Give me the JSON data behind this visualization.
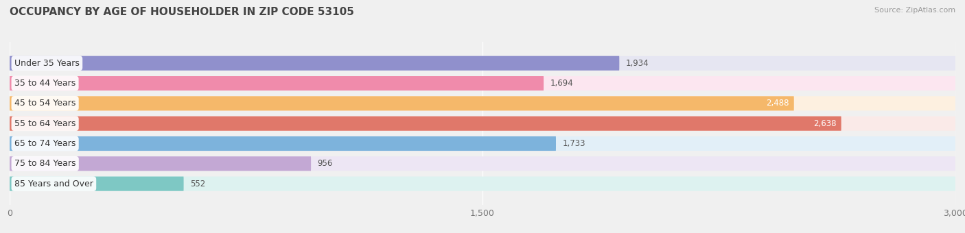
{
  "title": "OCCUPANCY BY AGE OF HOUSEHOLDER IN ZIP CODE 53105",
  "source": "Source: ZipAtlas.com",
  "categories": [
    "Under 35 Years",
    "35 to 44 Years",
    "45 to 54 Years",
    "55 to 64 Years",
    "65 to 74 Years",
    "75 to 84 Years",
    "85 Years and Over"
  ],
  "values": [
    1934,
    1694,
    2488,
    2638,
    1733,
    956,
    552
  ],
  "bar_colors": [
    "#9090cc",
    "#f08bab",
    "#f5b86a",
    "#e0786a",
    "#7db3dc",
    "#c3a8d4",
    "#7ec8c4"
  ],
  "bar_bg_colors": [
    "#e6e6f2",
    "#fce6f0",
    "#fdf0e0",
    "#faeae8",
    "#e2eff8",
    "#ede6f4",
    "#ddf2f0"
  ],
  "xlim": [
    0,
    3000
  ],
  "xticks": [
    0,
    1500,
    3000
  ],
  "xticklabels": [
    "0",
    "1,500",
    "3,000"
  ],
  "title_fontsize": 11,
  "label_fontsize": 9,
  "value_fontsize": 8.5,
  "background_color": "#f0f0f0",
  "value_inside_threshold": 2000
}
